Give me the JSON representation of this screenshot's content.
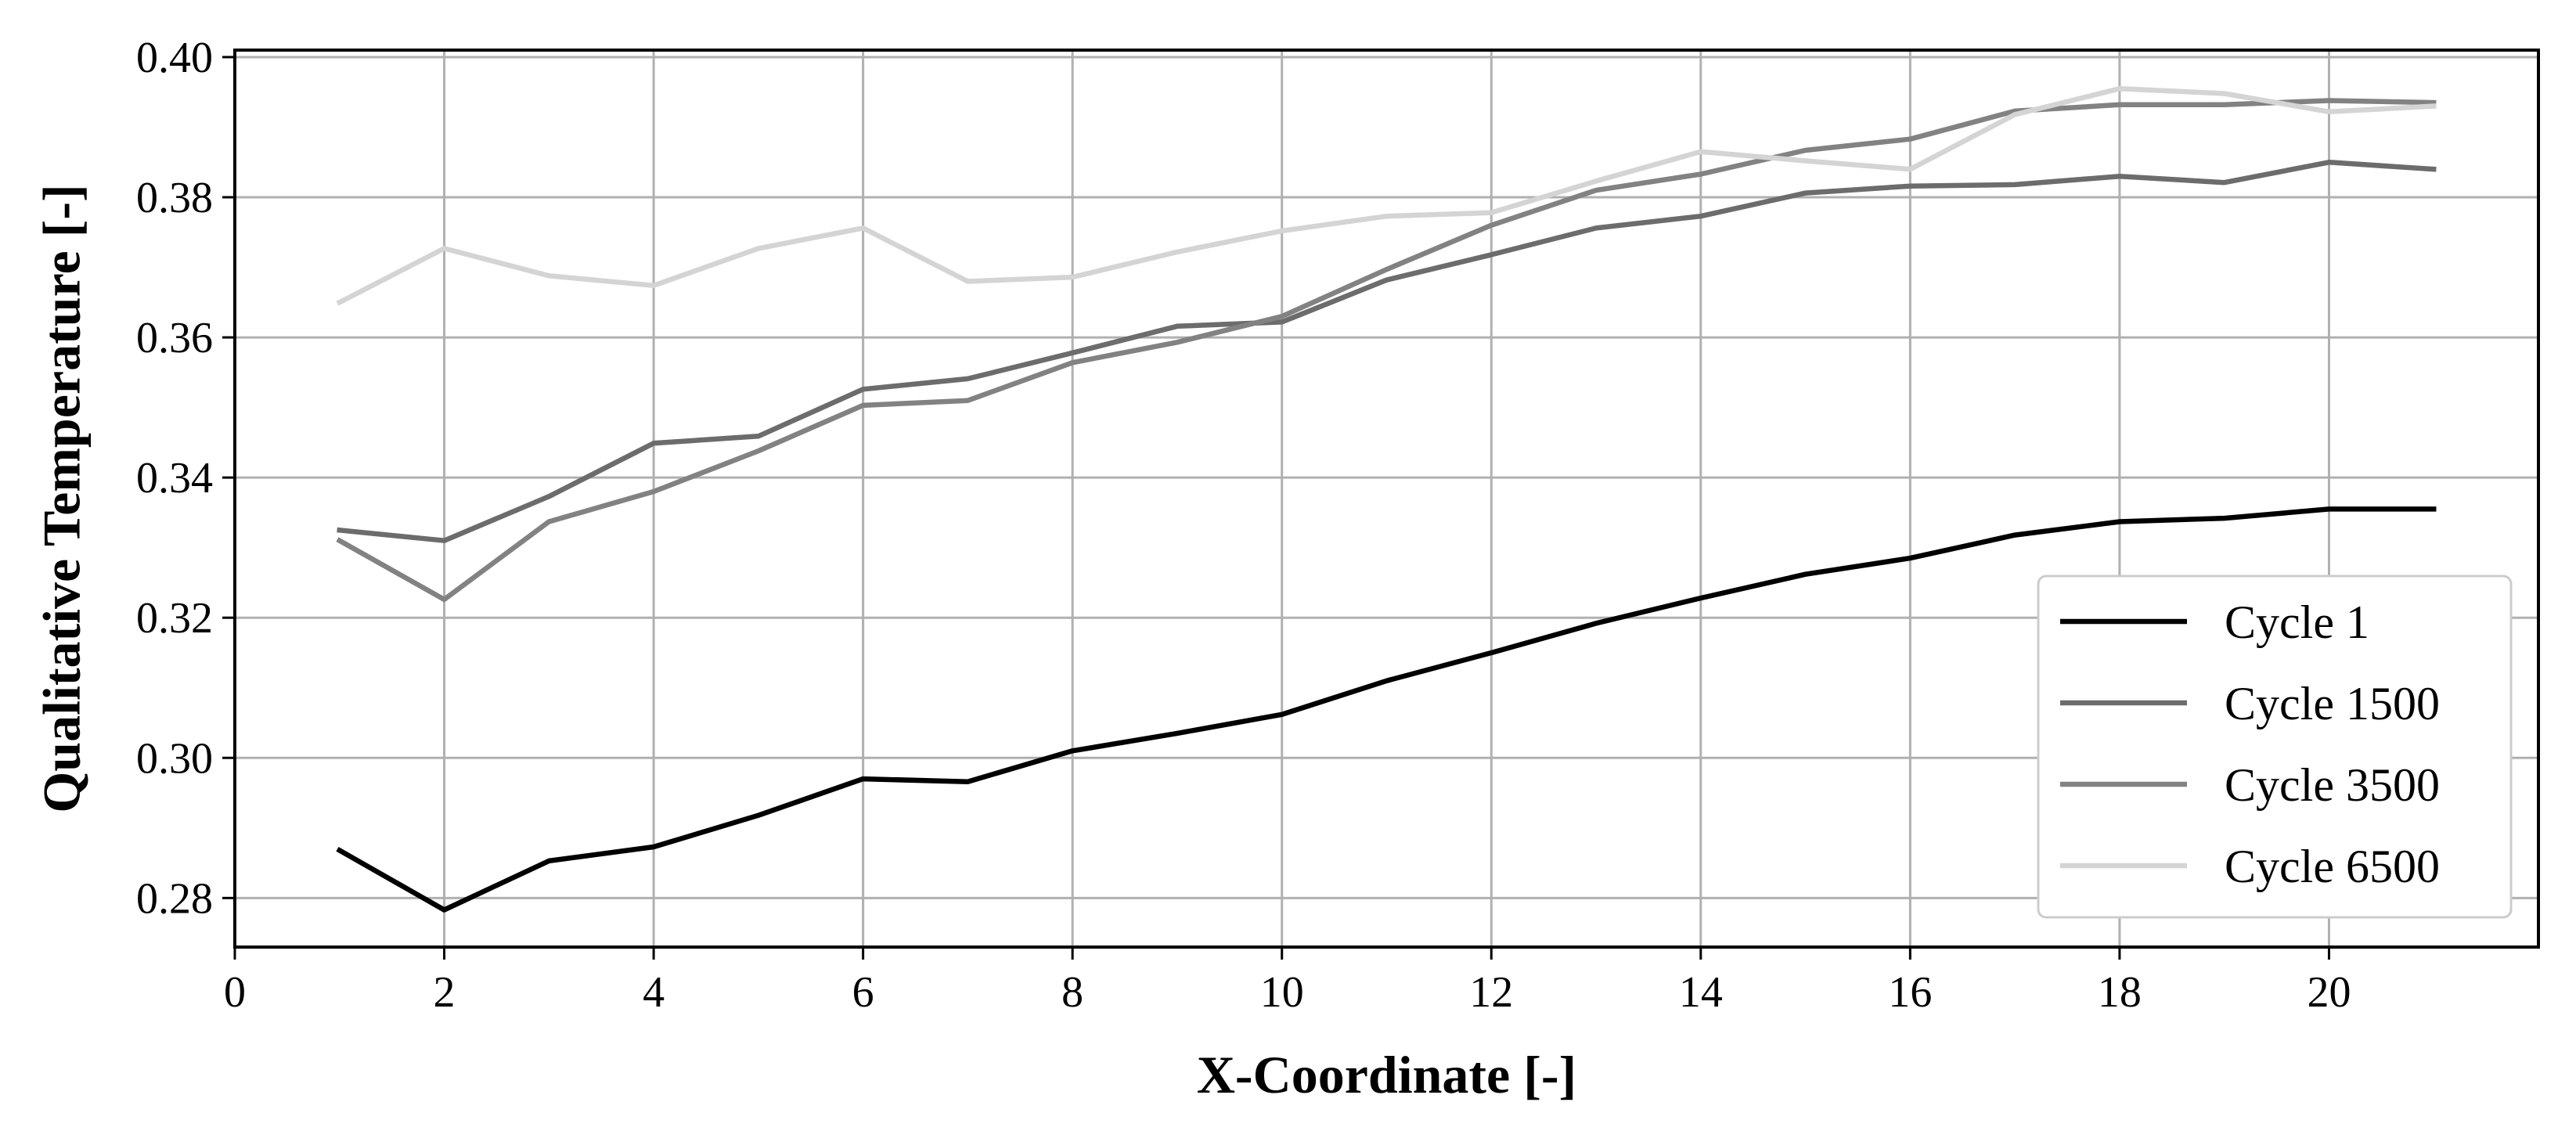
{
  "chart_data": {
    "type": "line",
    "title": "",
    "xlabel": "X-Coordinate [-]",
    "ylabel": "Qualitative Temperature [-]",
    "xlim": [
      0,
      22
    ],
    "ylim": [
      0.273,
      0.401
    ],
    "xticks": [
      0,
      2,
      4,
      6,
      8,
      10,
      12,
      14,
      16,
      18,
      20
    ],
    "yticks": [
      0.28,
      0.3,
      0.32,
      0.34,
      0.36,
      0.38,
      0.4
    ],
    "ytick_labels": [
      "0.28",
      "0.30",
      "0.32",
      "0.34",
      "0.36",
      "0.38",
      "0.40"
    ],
    "grid": true,
    "legend_position": "lower-right",
    "x": [
      1,
      2,
      3,
      4,
      5,
      6,
      7,
      8,
      9,
      10,
      11,
      12,
      13,
      14,
      15,
      16,
      17,
      18,
      19,
      20,
      21
    ],
    "series": [
      {
        "name": "Cycle 1",
        "color": "#000000",
        "values": [
          0.2868,
          0.2783,
          0.2853,
          0.2873,
          0.2918,
          0.297,
          0.2966,
          0.301,
          0.3035,
          0.3062,
          0.311,
          0.315,
          0.3192,
          0.3228,
          0.3262,
          0.3285,
          0.3318,
          0.3337,
          0.3342,
          0.3355,
          0.3355
        ]
      },
      {
        "name": "Cycle 1500",
        "color": "#6c6c6c",
        "values": [
          0.3325,
          0.331,
          0.3373,
          0.3449,
          0.3459,
          0.3526,
          0.3541,
          0.3578,
          0.3616,
          0.3622,
          0.3682,
          0.3718,
          0.3756,
          0.3773,
          0.3806,
          0.3816,
          0.3818,
          0.383,
          0.3821,
          0.385,
          0.384
        ]
      },
      {
        "name": "Cycle 3500",
        "color": "#828282",
        "values": [
          0.331,
          0.3226,
          0.3337,
          0.338,
          0.3438,
          0.3503,
          0.351,
          0.3564,
          0.3593,
          0.363,
          0.3697,
          0.376,
          0.381,
          0.3833,
          0.3867,
          0.3883,
          0.3923,
          0.3932,
          0.3932,
          0.3938,
          0.3935
        ]
      },
      {
        "name": "Cycle 6500",
        "color": "#d4d4d4",
        "values": [
          0.365,
          0.3727,
          0.3688,
          0.3674,
          0.3727,
          0.3756,
          0.368,
          0.3686,
          0.3722,
          0.3752,
          0.3773,
          0.3778,
          0.3823,
          0.3865,
          0.3852,
          0.384,
          0.3918,
          0.3955,
          0.3948,
          0.3922,
          0.393
        ]
      }
    ]
  }
}
